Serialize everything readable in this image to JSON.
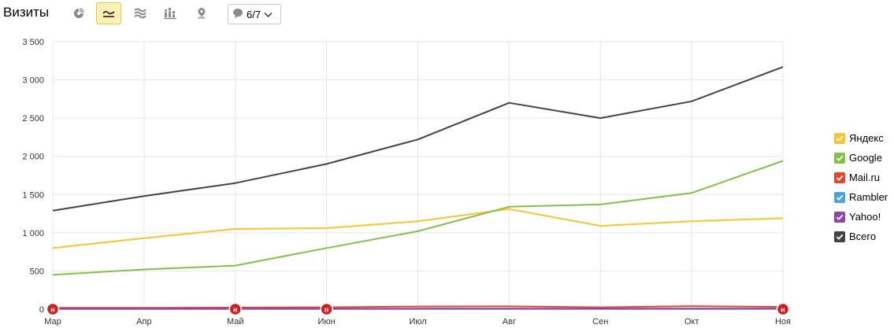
{
  "header": {
    "title": "Визиты",
    "notes_counter": "6/7"
  },
  "toolbar": {
    "buttons": [
      {
        "name": "pie-chart-button",
        "icon": "pie-chart-icon",
        "active": false
      },
      {
        "name": "line-chart-button",
        "icon": "line-chart-icon",
        "active": true
      },
      {
        "name": "area-chart-button",
        "icon": "stacked-area-icon",
        "active": false
      },
      {
        "name": "column-chart-button",
        "icon": "bar-chart-icon",
        "active": false
      },
      {
        "name": "map-button",
        "icon": "map-pin-icon",
        "active": false
      }
    ]
  },
  "colors": {
    "accent_active_bg": "#fff1b3",
    "grid": "#e6e6e6",
    "note_marker": "#cc1f1f"
  },
  "chart_data": {
    "type": "line",
    "categories": [
      "Мар",
      "Апр",
      "Май",
      "Июн",
      "Июл",
      "Авг",
      "Сен",
      "Окт",
      "Ноя"
    ],
    "ylim": [
      0,
      3500
    ],
    "yticks": [
      "0",
      "500",
      "1 000",
      "1 500",
      "2 000",
      "2 500",
      "3 000",
      "3 500"
    ],
    "ytick_values": [
      0,
      500,
      1000,
      1500,
      2000,
      2500,
      3000,
      3500
    ],
    "grid": true,
    "legend_position": "right",
    "series": [
      {
        "name": "Яндекс",
        "color": "#f5c62f",
        "values": [
          800,
          930,
          1050,
          1060,
          1150,
          1310,
          1090,
          1150,
          1190
        ]
      },
      {
        "name": "Google",
        "color": "#85c14a",
        "values": [
          450,
          520,
          570,
          800,
          1020,
          1340,
          1370,
          1520,
          1940
        ]
      },
      {
        "name": "Mail.ru",
        "color": "#e8452c",
        "values": [
          18,
          17,
          22,
          25,
          35,
          37,
          25,
          40,
          30
        ]
      },
      {
        "name": "Rambler",
        "color": "#4aa3df",
        "values": [
          3,
          3,
          3,
          3,
          3,
          3,
          3,
          3,
          3
        ]
      },
      {
        "name": "Yahoo!",
        "color": "#8e44ad",
        "values": [
          5,
          5,
          6,
          6,
          7,
          7,
          6,
          7,
          7
        ]
      },
      {
        "name": "Всего",
        "color": "#444444",
        "values": [
          1290,
          1480,
          1650,
          1900,
          2220,
          2700,
          2500,
          2720,
          3170
        ]
      }
    ],
    "note_markers": [
      {
        "label": "н",
        "x": 0
      },
      {
        "label": "н",
        "x": 2
      },
      {
        "label": "н",
        "x": 3
      },
      {
        "label": "н",
        "x": 8
      }
    ]
  }
}
